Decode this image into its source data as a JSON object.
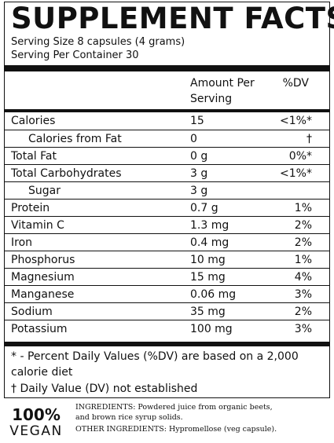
{
  "title": "SUPPLEMENT FACTS",
  "serving_size": "Serving Size 8 capsules (4 grams)",
  "servings_per_container": "Serving Per Container 30",
  "header": {
    "amount_line1": "Amount Per",
    "amount_line2": "Serving",
    "dv": "%DV"
  },
  "rows": [
    {
      "name": "Calories",
      "amount": "15",
      "dv": "<1%*"
    },
    {
      "name": "Calories from Fat",
      "amount": "0",
      "dv": "†"
    },
    {
      "name": "Total Fat",
      "amount": "0 g",
      "dv": "0%*"
    },
    {
      "name": "Total Carbohydrates",
      "amount": "3 g",
      "dv": "<1%*"
    },
    {
      "name": "Sugar",
      "amount": "3 g",
      "dv": ""
    },
    {
      "name": "Protein",
      "amount": "0.7 g",
      "dv": "1%"
    },
    {
      "name": "Vitamin C",
      "amount": "1.3 mg",
      "dv": "2%"
    },
    {
      "name": "Iron",
      "amount": "0.4 mg",
      "dv": "2%"
    },
    {
      "name": "Phosphorus",
      "amount": "10 mg",
      "dv": "1%"
    },
    {
      "name": "Magnesium",
      "amount": "15 mg",
      "dv": "4%"
    },
    {
      "name": "Manganese",
      "amount": "0.06 mg",
      "dv": "3%"
    },
    {
      "name": "Sodium",
      "amount": "35 mg",
      "dv": "2%"
    },
    {
      "name": "Potassium",
      "amount": "100 mg",
      "dv": "3%"
    }
  ],
  "footnote": {
    "line1": "* - Percent Daily Values (%DV) are based on a 2,000",
    "line2": "calorie diet",
    "line3": "† Daily Value (DV) not established"
  },
  "badge": {
    "percent": "100%",
    "word": "VEGAN"
  },
  "ingredients": {
    "line1": "INGREDIENTS: Powdered juice from organic beets,",
    "line2": "and brown rice syrup solids.",
    "line3": "OTHER INGREDIENTS: Hypromellose (veg capsule)."
  }
}
